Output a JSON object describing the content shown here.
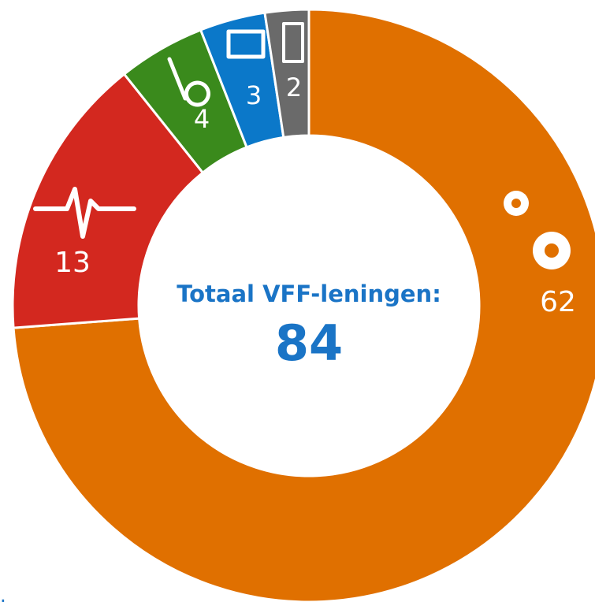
{
  "chart_data": {
    "type": "pie",
    "donut": true,
    "values": [
      62,
      13,
      4,
      3,
      2
    ],
    "colors": [
      "#e07000",
      "#d3281f",
      "#3a8a1c",
      "#0b78c9",
      "#6a6a6a"
    ],
    "center_title": "Totaal VFF-leningen:",
    "center_value": 84,
    "edge_text": "ter"
  }
}
